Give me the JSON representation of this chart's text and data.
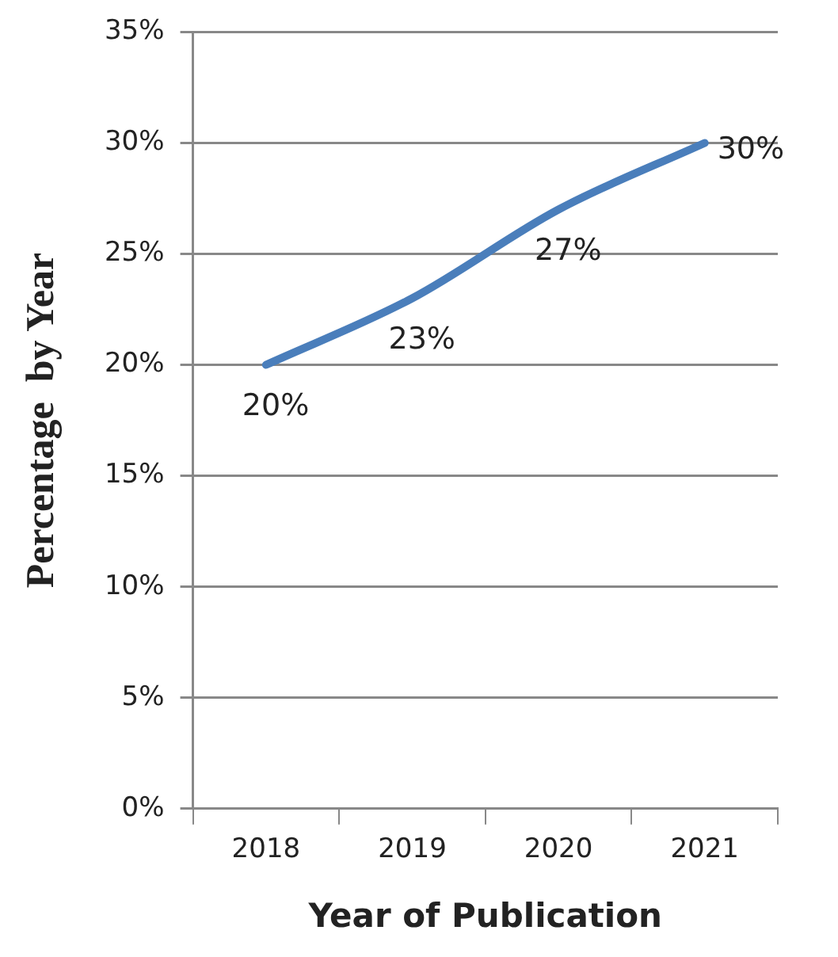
{
  "chart_data": {
    "type": "line",
    "xlabel": "Year of Publication",
    "ylabel": "Percentage  by Year",
    "categories": [
      "2018",
      "2019",
      "2020",
      "2021"
    ],
    "series": [
      {
        "color": "#4a7ebb",
        "values": [
          20,
          23,
          27,
          30
        ],
        "value_labels": [
          "20%",
          "23%",
          "27%",
          "30%"
        ]
      }
    ],
    "ylim": [
      0,
      35
    ],
    "yticks": [
      {
        "value": 0,
        "label": "0%"
      },
      {
        "value": 5,
        "label": "5%"
      },
      {
        "value": 10,
        "label": "10%"
      },
      {
        "value": 15,
        "label": "15%"
      },
      {
        "value": 20,
        "label": "20%"
      },
      {
        "value": 25,
        "label": "25%"
      },
      {
        "value": 30,
        "label": "30%"
      },
      {
        "value": 35,
        "label": "35%"
      }
    ],
    "grid": "y",
    "legend": false,
    "marker": "none",
    "line_style": "solid"
  }
}
